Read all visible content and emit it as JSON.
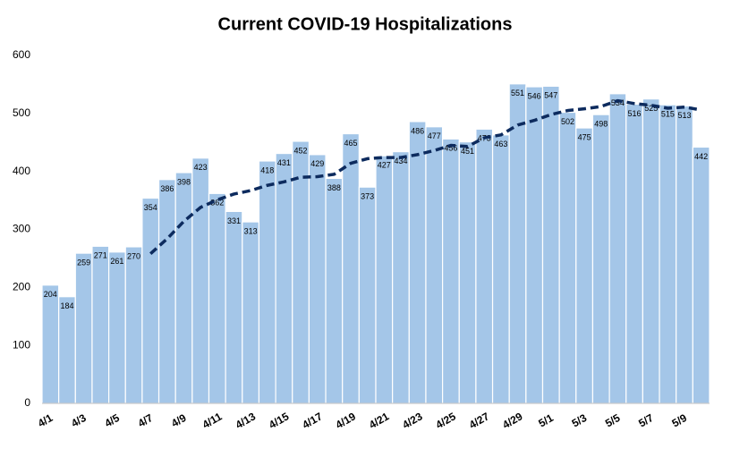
{
  "chart_data": {
    "type": "bar",
    "title": "Current COVID-19 Hospitalizations",
    "categories": [
      "4/1",
      null,
      "4/3",
      null,
      "4/5",
      null,
      "4/7",
      null,
      "4/9",
      null,
      "4/11",
      null,
      "4/13",
      null,
      "4/15",
      null,
      "4/17",
      null,
      "4/19",
      null,
      "4/21",
      null,
      "4/23",
      null,
      "4/25",
      null,
      "4/27",
      null,
      "4/29",
      null,
      "5/1",
      null,
      "5/3",
      null,
      "5/5",
      null,
      "5/7",
      null,
      "5/9",
      null
    ],
    "series": [
      {
        "type": "bar",
        "color": "#a4c6e8",
        "values": [
          204,
          184,
          259,
          271,
          261,
          270,
          354,
          386,
          398,
          423,
          362,
          331,
          313,
          418,
          431,
          452,
          429,
          388,
          465,
          373,
          427,
          434,
          486,
          477,
          456,
          451,
          473,
          463,
          551,
          546,
          547,
          502,
          475,
          498,
          534,
          516,
          525,
          515,
          513,
          442
        ]
      },
      {
        "type": "line",
        "color": "#0d2b5e",
        "dashed": true,
        "values": [
          null,
          null,
          null,
          null,
          null,
          null,
          258,
          284,
          314,
          338,
          351,
          361,
          367,
          376,
          382,
          390,
          391,
          395,
          414,
          422,
          424,
          424,
          429,
          436,
          445,
          443,
          458,
          463,
          480,
          488,
          498,
          505,
          508,
          512,
          522,
          517,
          514,
          509,
          511,
          506
        ]
      }
    ],
    "ylim": [
      0,
      600
    ],
    "yticks": [
      0,
      100,
      200,
      300,
      400,
      500,
      600
    ],
    "grid": false
  }
}
